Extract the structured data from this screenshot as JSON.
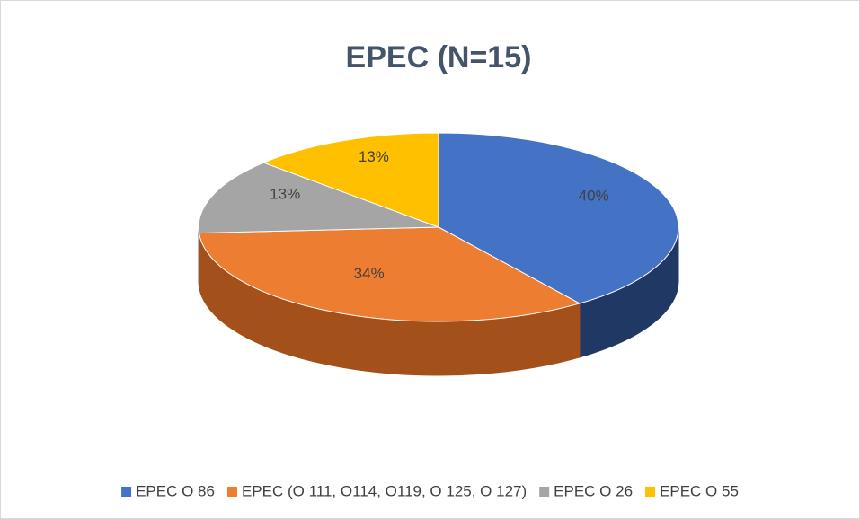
{
  "chart_data": {
    "type": "pie",
    "title": "EPEC (N=15)",
    "categories": [
      "EPEC O 86",
      "EPEC (O 111, O114, O119, O 125, O 127)",
      "EPEC O 26",
      "EPEC O 55"
    ],
    "values": [
      40,
      34,
      13,
      13
    ],
    "value_labels": [
      "40%",
      "34%",
      "13%",
      "13%"
    ],
    "colors": [
      "#4472c4",
      "#ed7d31",
      "#a5a5a5",
      "#ffc000"
    ],
    "side_colors": [
      "#203864",
      "#a4501a",
      "#6e6e6e",
      "#b08600"
    ],
    "legend": "bottom"
  }
}
